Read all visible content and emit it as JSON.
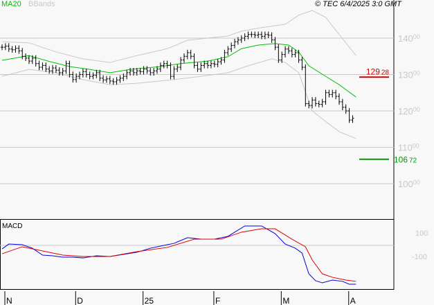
{
  "legend": {
    "ma20": "MA20",
    "bbands": "BBands",
    "ma_color": "#00c000",
    "bb_color": "#c8c8c8"
  },
  "copyright": "© TEC 6/4/2025 3:0 GMT",
  "chart_data": [
    {
      "type": "ohlc",
      "title": "",
      "ylim": [
        95,
        150
      ],
      "y_ticks": [
        {
          "value": 140,
          "label": "140",
          "dec": "00"
        },
        {
          "value": 130,
          "label": "130",
          "dec": "00"
        },
        {
          "value": 120,
          "label": "120",
          "dec": "00"
        },
        {
          "value": 110,
          "label": "110",
          "dec": "00"
        },
        {
          "value": 100,
          "label": "100",
          "dec": "00"
        }
      ],
      "x_ticks": [
        {
          "index": 0,
          "label": "N"
        },
        {
          "index": 21,
          "label": "D"
        },
        {
          "index": 41,
          "label": "25"
        },
        {
          "index": 62,
          "label": "F"
        },
        {
          "index": 82,
          "label": "M"
        },
        {
          "index": 102,
          "label": "A"
        }
      ],
      "closes": [
        137.5,
        137.8,
        137,
        136.8,
        137.2,
        136.5,
        135,
        134.5,
        133.7,
        134.5,
        133,
        132,
        132.5,
        131.5,
        131,
        131.8,
        131.2,
        130.5,
        131,
        133,
        130,
        128.6,
        129.5,
        130,
        130.8,
        130,
        129.5,
        129.8,
        130.5,
        129,
        128.5,
        128.8,
        128.2,
        128,
        128.5,
        129,
        129.5,
        130.5,
        131,
        130.5,
        131,
        130.8,
        131.5,
        131,
        130.5,
        131,
        131.5,
        132.5,
        133,
        132.5,
        129.5,
        131.5,
        132,
        134,
        135,
        136,
        135,
        132.5,
        131.5,
        132.5,
        133,
        132.5,
        133,
        132.8,
        133.5,
        134,
        136,
        137,
        138,
        139,
        139.5,
        140,
        140.5,
        141,
        141,
        140.8,
        141,
        140.5,
        141,
        140.8,
        139.5,
        137.5,
        134,
        135.5,
        137,
        136.5,
        135.5,
        136,
        134,
        132,
        122,
        121.5,
        123,
        122,
        121.8,
        122.5,
        125,
        124.5,
        125,
        124,
        122.5,
        121,
        120,
        117.5,
        118
      ],
      "ma20": [
        [
          0,
          133.9
        ],
        [
          8,
          135.2
        ],
        [
          14,
          133.6
        ],
        [
          20,
          132.2
        ],
        [
          26,
          131.4
        ],
        [
          32,
          130.5
        ],
        [
          38,
          131.4
        ],
        [
          47,
          132.2
        ],
        [
          53,
          133
        ],
        [
          61,
          133.7
        ],
        [
          67,
          134.9
        ],
        [
          71,
          137.1
        ],
        [
          76,
          138.1
        ],
        [
          81,
          138.5
        ],
        [
          85,
          138.1
        ],
        [
          88,
          136.2
        ],
        [
          91,
          132.4
        ],
        [
          96,
          129.5
        ],
        [
          100,
          127.2
        ],
        [
          105,
          123.8
        ]
      ],
      "bb_upper": [
        [
          0,
          139
        ],
        [
          8,
          138.7
        ],
        [
          16,
          136.2
        ],
        [
          24,
          134.3
        ],
        [
          32,
          133.3
        ],
        [
          40,
          135.2
        ],
        [
          49,
          137.1
        ],
        [
          55,
          139.4
        ],
        [
          61,
          140
        ],
        [
          67,
          140.6
        ],
        [
          71,
          141.9
        ],
        [
          77,
          142.9
        ],
        [
          84,
          143.8
        ],
        [
          88,
          146.3
        ],
        [
          92,
          147.6
        ],
        [
          96,
          145.7
        ],
        [
          100,
          141
        ],
        [
          105,
          135.2
        ]
      ],
      "bb_lower": [
        [
          0,
          129.5
        ],
        [
          8,
          131.4
        ],
        [
          16,
          130.5
        ],
        [
          24,
          128.6
        ],
        [
          32,
          127.2
        ],
        [
          40,
          127.6
        ],
        [
          51,
          128.6
        ],
        [
          59,
          129.5
        ],
        [
          67,
          130.5
        ],
        [
          73,
          132.4
        ],
        [
          80,
          134.3
        ],
        [
          84,
          133.3
        ],
        [
          88,
          130.5
        ],
        [
          92,
          120
        ],
        [
          96,
          117.1
        ],
        [
          100,
          114.3
        ],
        [
          105,
          112.4
        ]
      ],
      "resistance": {
        "value": 129.28,
        "label": "129",
        "dec": "28",
        "color": "#cc0000"
      },
      "support": {
        "value": 106.72,
        "label": "106",
        "dec": "72",
        "color": "#009900"
      }
    },
    {
      "type": "line",
      "title": "MACD",
      "ylim": [
        -450,
        270
      ],
      "y_ticks": [
        {
          "value": 100,
          "label": "100"
        },
        {
          "value": -100,
          "label": "-100"
        }
      ],
      "series": [
        {
          "color": "#0000dd",
          "points": [
            [
              0,
              -36
            ],
            [
              2,
              14
            ],
            [
              6,
              7
            ],
            [
              9,
              -29
            ],
            [
              12,
              -100
            ],
            [
              15,
              -107
            ],
            [
              18,
              -121
            ],
            [
              21,
              -121
            ],
            [
              24,
              -129
            ],
            [
              28,
              -107
            ],
            [
              32,
              -114
            ],
            [
              36,
              -93
            ],
            [
              40,
              -71
            ],
            [
              44,
              -29
            ],
            [
              48,
              0
            ],
            [
              51,
              21
            ],
            [
              55,
              79
            ],
            [
              59,
              64
            ],
            [
              63,
              64
            ],
            [
              67,
              93
            ],
            [
              72,
              200
            ],
            [
              77,
              200
            ],
            [
              81,
              121
            ],
            [
              84,
              14
            ],
            [
              87,
              -29
            ],
            [
              89,
              -79
            ],
            [
              91,
              -293
            ],
            [
              93,
              -364
            ],
            [
              95,
              -386
            ],
            [
              98,
              -357
            ],
            [
              101,
              -371
            ],
            [
              103,
              -400
            ],
            [
              105,
              -400
            ]
          ]
        },
        {
          "color": "#dd0000",
          "points": [
            [
              0,
              -86
            ],
            [
              6,
              -14
            ],
            [
              12,
              -57
            ],
            [
              18,
              -100
            ],
            [
              24,
              -114
            ],
            [
              32,
              -114
            ],
            [
              40,
              -64
            ],
            [
              49,
              -21
            ],
            [
              57,
              64
            ],
            [
              65,
              64
            ],
            [
              71,
              136
            ],
            [
              77,
              171
            ],
            [
              81,
              171
            ],
            [
              86,
              64
            ],
            [
              90,
              -14
            ],
            [
              92,
              -150
            ],
            [
              95,
              -293
            ],
            [
              98,
              -329
            ],
            [
              102,
              -357
            ],
            [
              105,
              -371
            ]
          ]
        }
      ]
    }
  ]
}
